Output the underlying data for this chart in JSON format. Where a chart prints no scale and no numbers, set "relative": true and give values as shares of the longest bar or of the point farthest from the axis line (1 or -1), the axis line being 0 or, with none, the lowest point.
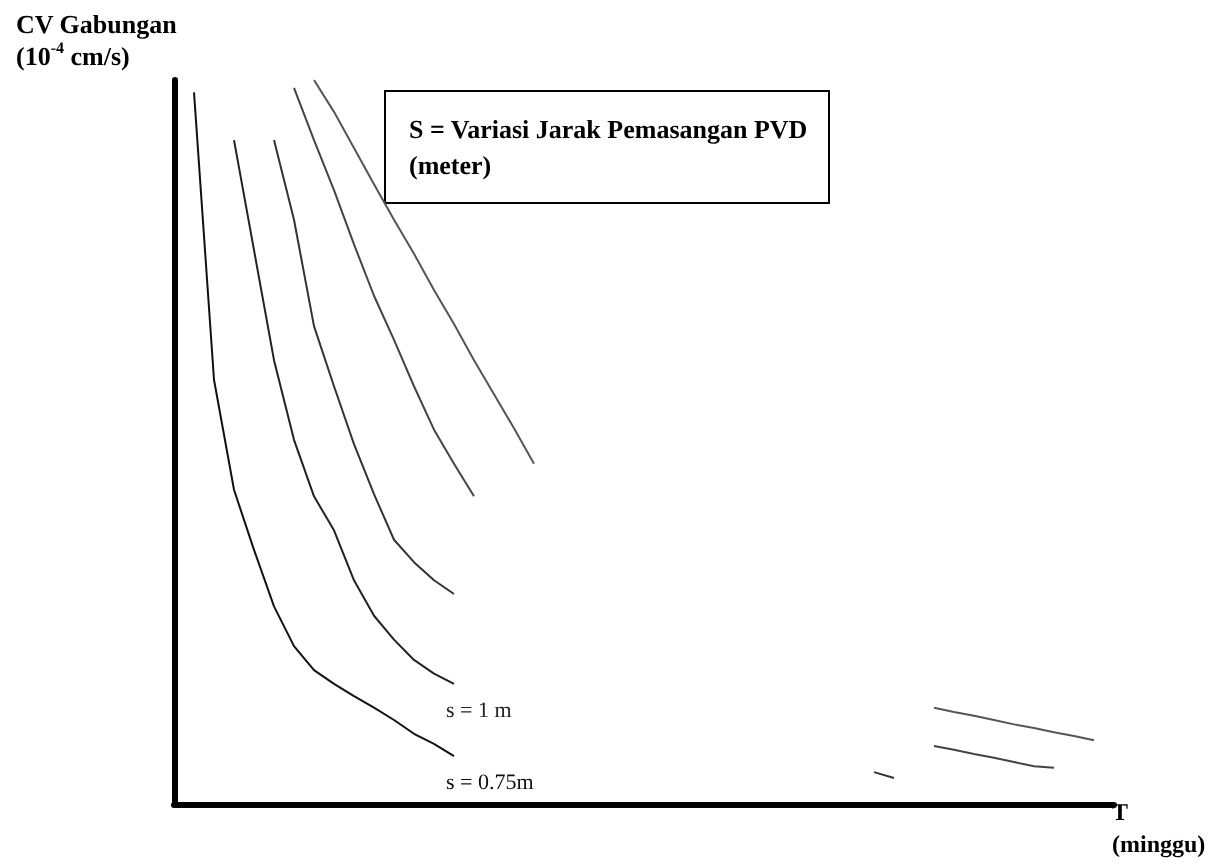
{
  "chart_data": {
    "type": "line",
    "relative": true,
    "ylabel": "CV Gabungan\n(10$^{-4}$ cm/s)",
    "xlabel": "T\n(minggu)",
    "annotations": [
      "S = Variasi Jarak Pemasangan PVD\n(meter)"
    ],
    "categories": [
      null,
      null,
      null,
      null,
      null,
      null,
      null,
      null,
      null,
      null,
      null,
      null,
      null,
      null,
      null,
      null,
      null,
      null,
      null,
      null,
      null,
      null,
      null,
      null,
      null,
      null,
      null,
      null,
      null,
      null,
      null,
      null,
      null,
      null,
      null,
      null,
      null,
      null,
      null,
      null,
      null,
      null,
      null,
      null,
      null,
      null,
      null,
      null
    ],
    "series": [
      {
        "name": "s = 0.75m",
        "color": "#111111",
        "values": [
          null,
          0.983,
          0.586,
          0.434,
          0.351,
          0.273,
          0.218,
          0.185,
          0.166,
          0.149,
          0.133,
          0.116,
          0.097,
          0.083,
          0.066,
          null,
          null,
          null,
          null,
          null,
          null,
          null,
          null,
          null,
          null,
          null,
          null,
          null,
          null,
          null,
          null,
          null,
          null,
          null,
          null,
          null,
          null,
          null,
          null,
          null,
          null,
          null,
          null,
          null,
          null,
          null,
          null,
          null
        ]
      },
      {
        "name": "s = 1 m",
        "color": "#222222",
        "values": [
          null,
          null,
          null,
          0.917,
          0.765,
          0.613,
          0.503,
          0.425,
          0.378,
          0.309,
          0.26,
          0.227,
          0.199,
          0.18,
          0.166,
          null,
          null,
          null,
          null,
          null,
          null,
          null,
          null,
          null,
          null,
          null,
          null,
          null,
          null,
          null,
          null,
          null,
          null,
          null,
          null,
          null,
          null,
          null,
          null,
          null,
          null,
          null,
          null,
          null,
          null,
          null,
          null,
          null
        ]
      },
      {
        "color": "#333333",
        "values": [
          null,
          null,
          null,
          null,
          null,
          0.917,
          0.807,
          0.66,
          0.577,
          0.497,
          0.428,
          0.365,
          0.334,
          0.309,
          0.29,
          null,
          null,
          null,
          null,
          null,
          null,
          null,
          null,
          null,
          null,
          null,
          null,
          null,
          null,
          null,
          null,
          null,
          null,
          null,
          null,
          0.044,
          0.036,
          null,
          null,
          null,
          null,
          null,
          null,
          null,
          null,
          null,
          null,
          null
        ]
      },
      {
        "color": "#444444",
        "values": [
          null,
          null,
          null,
          null,
          null,
          null,
          0.989,
          0.917,
          0.848,
          0.773,
          0.702,
          0.641,
          0.577,
          0.517,
          0.47,
          0.425,
          null,
          null,
          null,
          null,
          null,
          null,
          null,
          null,
          null,
          null,
          null,
          null,
          null,
          null,
          null,
          null,
          null,
          null,
          null,
          null,
          null,
          null,
          0.08,
          0.075,
          0.069,
          0.064,
          0.058,
          0.052,
          0.05,
          null,
          null,
          null
        ]
      },
      {
        "color": "#555555",
        "values": [
          null,
          null,
          null,
          null,
          null,
          null,
          null,
          1,
          0.956,
          0.906,
          0.856,
          0.807,
          0.76,
          0.71,
          0.663,
          0.613,
          0.566,
          0.519,
          0.47,
          null,
          null,
          null,
          null,
          null,
          null,
          null,
          null,
          null,
          null,
          null,
          null,
          null,
          null,
          null,
          null,
          null,
          null,
          null,
          0.133,
          0.127,
          0.122,
          0.116,
          0.11,
          0.105,
          0.099,
          0.094,
          0.088,
          null
        ]
      }
    ]
  }
}
